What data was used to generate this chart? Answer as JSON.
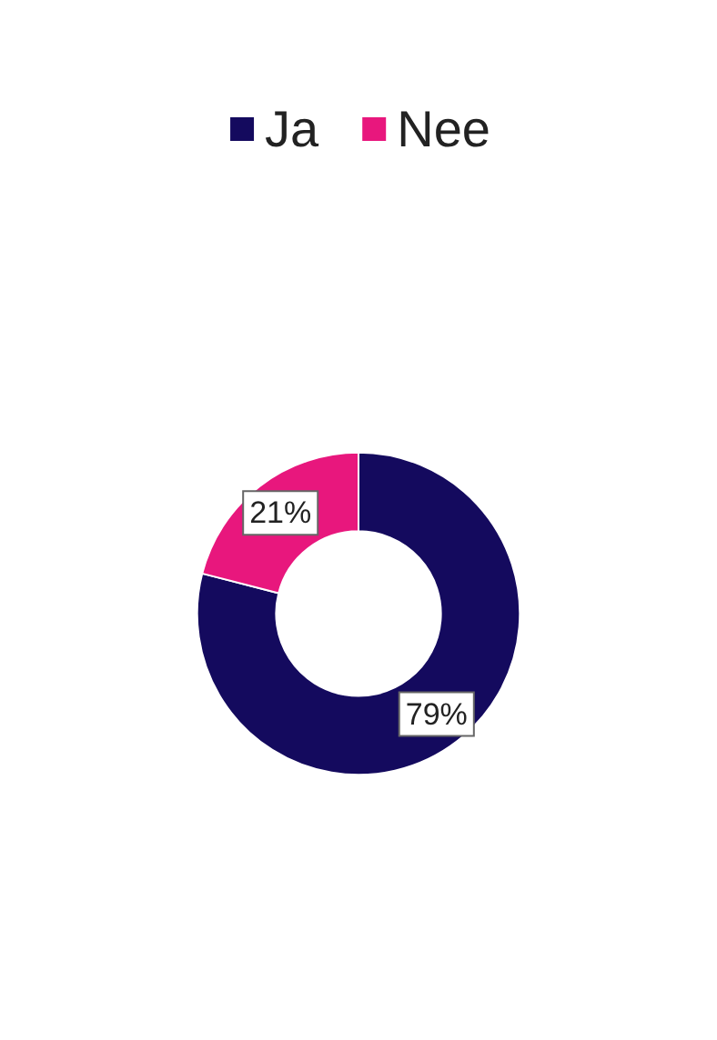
{
  "chart_data": {
    "type": "donut",
    "categories": [
      "Ja",
      "Nee"
    ],
    "values": [
      79,
      21
    ],
    "colors": [
      "#140a5e",
      "#e8177d"
    ],
    "value_labels": [
      "79%",
      "21%"
    ],
    "legend": "top"
  }
}
